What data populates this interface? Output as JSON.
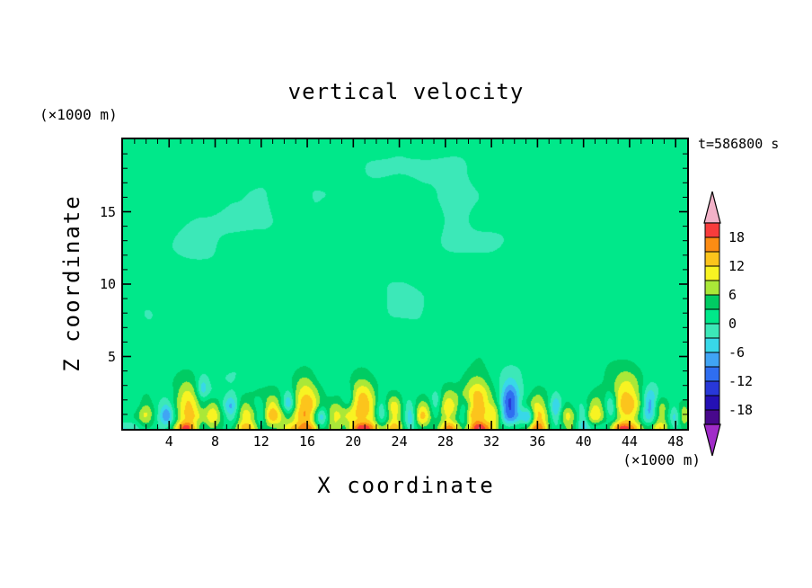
{
  "title": "vertical velocity",
  "timestamp": "t=586800 s",
  "axes": {
    "x": {
      "label": "X coordinate",
      "unit": "(×1000 m)",
      "min": 0,
      "max": 49,
      "major_ticks": [
        4,
        8,
        12,
        16,
        20,
        24,
        28,
        32,
        36,
        40,
        44,
        48
      ],
      "minor_step": 1
    },
    "z": {
      "label": "Z coordinate",
      "unit": "(×1000 m)",
      "min": 0,
      "max": 20,
      "major_ticks": [
        5,
        10,
        15
      ],
      "minor_step": 1
    }
  },
  "colorbar": {
    "labels": [
      18,
      12,
      6,
      0,
      -6,
      -12,
      -18
    ],
    "levels": [
      -21,
      -18,
      -15,
      -12,
      -9,
      -6,
      -3,
      0,
      3,
      6,
      9,
      12,
      15,
      18,
      21
    ],
    "colors": [
      "#a02cc8",
      "#48088c",
      "#2410b4",
      "#2838d8",
      "#2f6ef0",
      "#40a4f4",
      "#38d8e8",
      "#3ce8b8",
      "#00e88a",
      "#00cc63",
      "#aae838",
      "#f8f322",
      "#fcc41c",
      "#fc8c14",
      "#f83c3c",
      "#f2b2c8"
    ]
  },
  "colors": {
    "background": "#ffffff",
    "frame": "#000000",
    "text": "#000000"
  },
  "chart_data": {
    "type": "heatmap",
    "subtype": "filled-contour",
    "variable": "vertical velocity",
    "time_label": "t=586800 s",
    "x_range": [
      0,
      49
    ],
    "z_range": [
      0,
      20
    ],
    "contour_interval": 3,
    "background_value": 1.3,
    "feature_format": "[x, z, rx, rz, amplitude]",
    "noise": {
      "seed": 7,
      "octaves": [
        {
          "sx": 6.0,
          "sz": 4.5,
          "amp": 1.6
        },
        {
          "sx": 2.4,
          "sz": 1.8,
          "amp": 0.9
        }
      ],
      "surface_boost": {
        "sx": 1.3,
        "sz": 0.9,
        "amp": 4.2,
        "decay": 2.2
      }
    },
    "updrafts": [
      [
        2.0,
        1.0,
        0.8,
        1.1,
        9
      ],
      [
        5.6,
        1.4,
        1.1,
        1.9,
        13
      ],
      [
        7.8,
        0.9,
        0.7,
        1.0,
        8
      ],
      [
        10.6,
        1.0,
        0.8,
        1.2,
        9
      ],
      [
        13.0,
        1.2,
        0.9,
        1.4,
        10
      ],
      [
        15.8,
        1.6,
        1.1,
        2.1,
        13
      ],
      [
        18.4,
        0.9,
        0.7,
        1.0,
        8
      ],
      [
        20.8,
        1.5,
        1.3,
        2.0,
        14
      ],
      [
        23.6,
        1.1,
        0.8,
        1.3,
        10
      ],
      [
        26.0,
        1.0,
        0.8,
        1.1,
        9
      ],
      [
        28.3,
        1.2,
        0.9,
        1.5,
        11
      ],
      [
        30.8,
        1.6,
        1.2,
        2.1,
        13
      ],
      [
        32.3,
        0.9,
        0.6,
        1.0,
        8
      ],
      [
        36.0,
        1.1,
        0.9,
        1.4,
        10
      ],
      [
        38.6,
        0.9,
        0.7,
        1.0,
        8
      ],
      [
        41.0,
        1.1,
        0.8,
        1.2,
        9
      ],
      [
        43.8,
        1.5,
        1.3,
        2.0,
        14
      ],
      [
        46.6,
        1.0,
        0.8,
        1.2,
        9
      ],
      [
        48.6,
        0.9,
        0.7,
        1.0,
        8
      ]
    ],
    "downdrafts": [
      [
        3.8,
        1.0,
        0.6,
        0.9,
        -8
      ],
      [
        6.9,
        2.8,
        0.5,
        0.8,
        -6
      ],
      [
        9.4,
        1.4,
        0.6,
        1.0,
        -8
      ],
      [
        12.0,
        0.8,
        0.5,
        0.8,
        -7
      ],
      [
        14.4,
        1.8,
        0.5,
        0.9,
        -7
      ],
      [
        17.2,
        0.8,
        0.5,
        0.8,
        -7
      ],
      [
        19.6,
        2.2,
        0.5,
        0.8,
        -6
      ],
      [
        22.4,
        1.2,
        0.6,
        1.0,
        -8
      ],
      [
        25.0,
        0.8,
        0.5,
        0.8,
        -7
      ],
      [
        27.2,
        1.8,
        0.5,
        0.8,
        -6
      ],
      [
        29.6,
        0.9,
        0.5,
        0.8,
        -7
      ],
      [
        33.6,
        1.8,
        0.8,
        1.4,
        -13
      ],
      [
        35.2,
        0.8,
        0.5,
        0.8,
        -8
      ],
      [
        37.6,
        1.4,
        0.5,
        0.9,
        -7
      ],
      [
        40.0,
        0.8,
        0.5,
        0.8,
        -7
      ],
      [
        42.4,
        1.6,
        0.5,
        0.9,
        -8
      ],
      [
        45.8,
        1.6,
        0.7,
        1.2,
        -12
      ],
      [
        48.0,
        0.8,
        0.5,
        0.8,
        -8
      ]
    ],
    "surface_maxima": [
      [
        5.6,
        1.2,
        12
      ],
      [
        10.6,
        0.9,
        8
      ],
      [
        15.8,
        1.3,
        12
      ],
      [
        20.8,
        1.5,
        13
      ],
      [
        23.6,
        0.9,
        8
      ],
      [
        28.3,
        1.0,
        9
      ],
      [
        30.8,
        1.3,
        12
      ],
      [
        36.0,
        1.0,
        9
      ],
      [
        43.8,
        1.5,
        13
      ],
      [
        46.6,
        0.9,
        8
      ]
    ]
  }
}
